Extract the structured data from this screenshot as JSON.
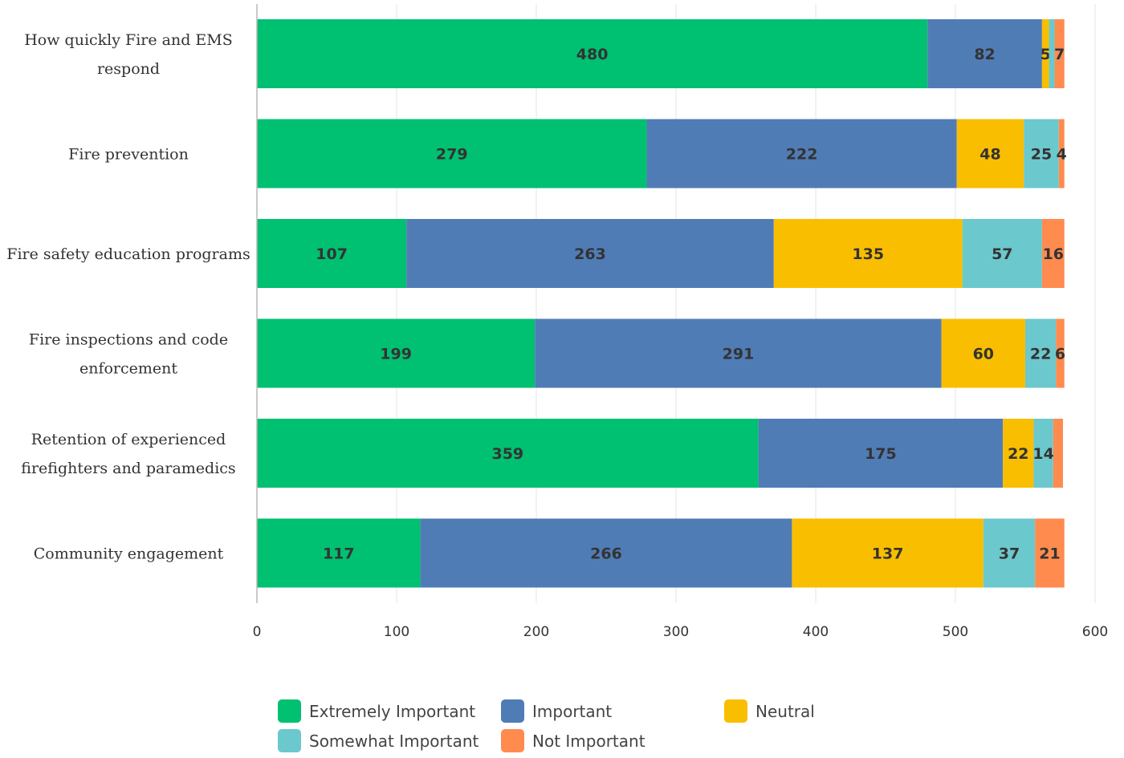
{
  "chart_data": {
    "type": "bar",
    "orientation": "horizontal",
    "stacked": true,
    "categories": [
      [
        "How quickly Fire and EMS",
        "respond"
      ],
      [
        "Fire prevention"
      ],
      [
        "Fire safety education programs"
      ],
      [
        "Fire inspections and code",
        "enforcement"
      ],
      [
        "Retention of experienced",
        "firefighters and paramedics"
      ],
      [
        "Community engagement"
      ]
    ],
    "series": [
      {
        "name": "Extremely Important",
        "color": "#00c071",
        "values": [
          480,
          279,
          107,
          199,
          359,
          117
        ]
      },
      {
        "name": "Important",
        "color": "#507cb6",
        "values": [
          82,
          222,
          263,
          291,
          175,
          266
        ]
      },
      {
        "name": "Neutral",
        "color": "#f9be00",
        "values": [
          5,
          48,
          135,
          60,
          22,
          137
        ]
      },
      {
        "name": "Somewhat Important",
        "color": "#6bc8cd",
        "values": [
          4,
          25,
          57,
          22,
          14,
          37
        ]
      },
      {
        "name": "Not Important",
        "color": "#ff8b4f",
        "values": [
          7,
          4,
          16,
          6,
          7,
          21
        ]
      }
    ],
    "value_labels": [
      [
        "480",
        "82",
        "5",
        "",
        "7"
      ],
      [
        "279",
        "222",
        "48",
        "25",
        "4"
      ],
      [
        "107",
        "263",
        "135",
        "57",
        "16"
      ],
      [
        "199",
        "291",
        "60",
        "22",
        "6"
      ],
      [
        "359",
        "175",
        "22",
        "14",
        ""
      ],
      [
        "117",
        "266",
        "137",
        "37",
        "21"
      ]
    ],
    "xlim": [
      0,
      600
    ],
    "xticks": [
      "0",
      "100",
      "200",
      "300",
      "400",
      "500",
      "600"
    ],
    "grid": true,
    "legend_position": "bottom"
  }
}
